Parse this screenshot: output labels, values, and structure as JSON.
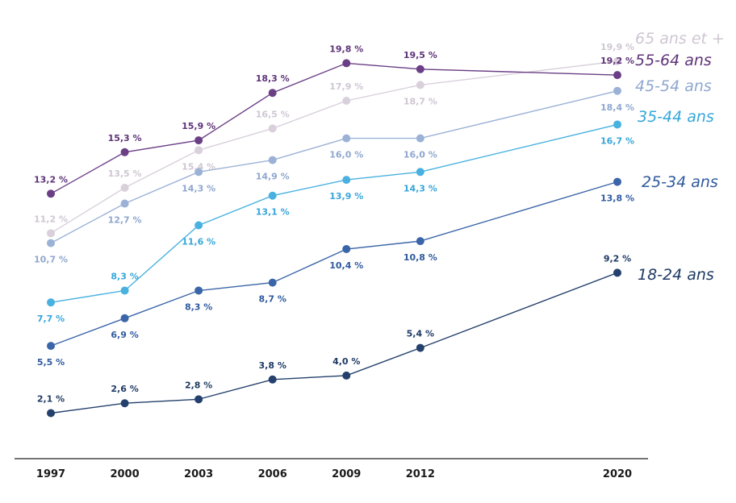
{
  "chart_data": {
    "type": "line",
    "title": "",
    "xlabel": "",
    "ylabel": "",
    "x": [
      "1997",
      "2000",
      "2003",
      "2006",
      "2009",
      "2012",
      "2020"
    ],
    "x_numeric": [
      1997,
      2000,
      2003,
      2006,
      2009,
      2012,
      2020
    ],
    "ylim": [
      0,
      21
    ],
    "grid": false,
    "legend": "direct labels at right end of each line",
    "series": [
      {
        "name": "65 ans et +",
        "color": "#d9d0dc",
        "label_color": "#cfc6d3",
        "values": [
          11.2,
          13.5,
          15.4,
          16.5,
          17.9,
          18.7,
          19.9
        ],
        "labels": [
          "11,2 %",
          "13,5 %",
          "15,4 %",
          "16,5 %",
          "17,9 %",
          "18,7 %",
          "19,9 %"
        ]
      },
      {
        "name": "55-64 ans",
        "color": "#6b3f86",
        "label_color": "#5e3378",
        "values": [
          13.2,
          15.3,
          15.9,
          18.3,
          19.8,
          19.5,
          19.2
        ],
        "labels": [
          "13,2 %",
          "15,3 %",
          "15,9 %",
          "18,3 %",
          "19,8 %",
          "19,5 %",
          "19,2 %"
        ]
      },
      {
        "name": "45-54 ans",
        "color": "#9bb2d6",
        "label_color": "#8fa7cf",
        "values": [
          10.7,
          12.7,
          14.3,
          14.9,
          16.0,
          16.0,
          18.4
        ],
        "labels": [
          "10,7 %",
          "12,7 %",
          "14,3 %",
          "14,9 %",
          "16,0 %",
          "16,0 %",
          "18,4 %"
        ]
      },
      {
        "name": "35-44 ans",
        "color": "#49b1e0",
        "label_color": "#36a6da",
        "values": [
          7.7,
          8.3,
          11.6,
          13.1,
          13.9,
          14.3,
          16.7
        ],
        "labels": [
          "7,7 %",
          "8,3 %",
          "11,6 %",
          "13,1 %",
          "13,9 %",
          "14,3 %",
          "16,7 %"
        ]
      },
      {
        "name": "25-34 ans",
        "color": "#3a65a8",
        "label_color": "#2f5a9e",
        "values": [
          5.5,
          6.9,
          8.3,
          8.7,
          10.4,
          10.8,
          13.8
        ],
        "labels": [
          "5,5 %",
          "6,9 %",
          "8,3 %",
          "8,7 %",
          "10,4 %",
          "10,8 %",
          "13,8 %"
        ]
      },
      {
        "name": "18-24 ans",
        "color": "#24406c",
        "label_color": "#1e3a64",
        "values": [
          2.1,
          2.6,
          2.8,
          3.8,
          4.0,
          5.4,
          9.2
        ],
        "labels": [
          "2,1 %",
          "2,6 %",
          "2,8 %",
          "3,8 %",
          "4,0 %",
          "5,4 %",
          "9,2 %"
        ]
      }
    ]
  }
}
